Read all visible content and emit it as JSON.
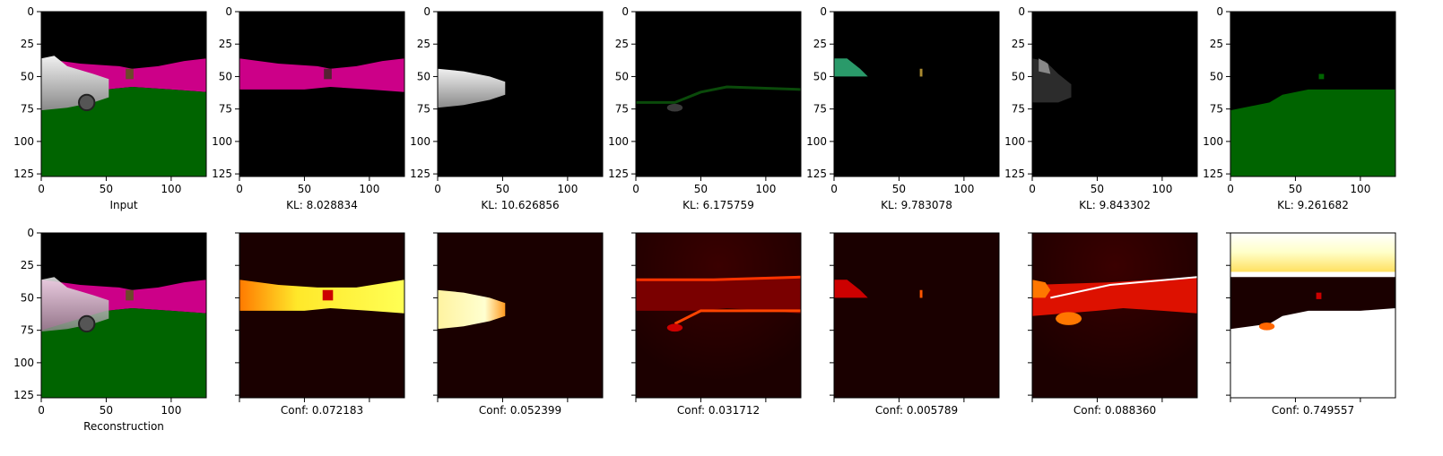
{
  "chart_data": {
    "type": "image-grid",
    "rows": 2,
    "columns": 7,
    "axes": {
      "xlim": [
        0,
        127
      ],
      "ylim": [
        127,
        0
      ],
      "xticks": [
        0,
        50,
        100
      ],
      "yticks": [
        0,
        25,
        50,
        75,
        100,
        125
      ],
      "tick_labels_x": [
        "0",
        "50",
        "100"
      ],
      "tick_labels_y": [
        "0",
        "25",
        "50",
        "75",
        "100",
        "125"
      ]
    },
    "row1": [
      {
        "caption": "Input",
        "image": "scene-input"
      },
      {
        "caption": "KL: 8.028834",
        "image": "slot-1-road"
      },
      {
        "caption": "KL: 10.626856",
        "image": "slot-2-car"
      },
      {
        "caption": "KL: 6.175759",
        "image": "slot-3-faint"
      },
      {
        "caption": "KL: 9.783078",
        "image": "slot-4-car-front"
      },
      {
        "caption": "KL: 9.843302",
        "image": "slot-5-car-faint"
      },
      {
        "caption": "KL: 9.261682",
        "image": "slot-6-ground"
      }
    ],
    "row2": [
      {
        "caption": "Reconstruction",
        "image": "scene-reconstruction"
      },
      {
        "caption": "Conf: 0.072183",
        "image": "mask-road"
      },
      {
        "caption": "Conf: 0.052399",
        "image": "mask-car"
      },
      {
        "caption": "Conf: 0.031712",
        "image": "mask-mixed"
      },
      {
        "caption": "Conf: 0.005789",
        "image": "mask-car-front"
      },
      {
        "caption": "Conf: 0.088360",
        "image": "mask-mixed-bright"
      },
      {
        "caption": "Conf: 0.749557",
        "image": "mask-ground"
      }
    ],
    "colors": {
      "black": "#000000",
      "magenta": "#cc0088",
      "green": "#006400",
      "hot_dark": "#1a0000",
      "hot_red": "#cc0000",
      "hot_yellow": "#ffff33",
      "hot_white": "#ffffff"
    }
  }
}
